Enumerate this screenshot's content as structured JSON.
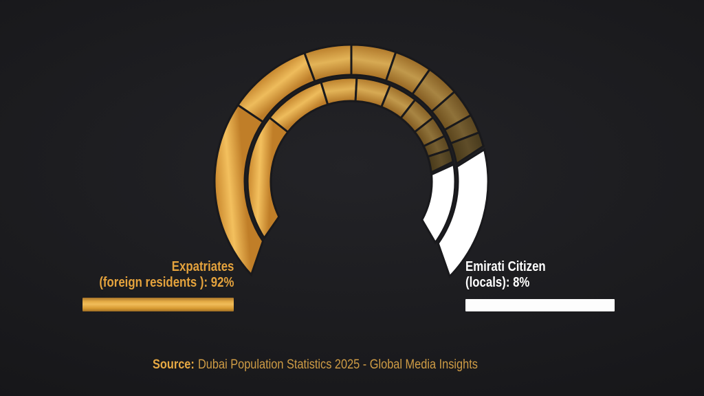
{
  "chart_data": {
    "type": "pie",
    "variant": "segmented-donut-gauge",
    "title": "",
    "series": [
      {
        "name": "Expatriates (foreign residents)",
        "value": 92,
        "unit": "%",
        "color": "#e5a33d"
      },
      {
        "name": "Emirati Citizen (locals)",
        "value": 8,
        "unit": "%",
        "color": "#ffffff"
      }
    ],
    "legend_position": "bottom",
    "gauge": {
      "center": [
        511,
        264
      ],
      "bands": {
        "outer": {
          "r_inner": 155,
          "r_outer": 199
        },
        "inner": {
          "r_inner": 117,
          "r_outer": 151
        }
      },
      "gold": {
        "outer_band": {
          "start_outer": 137,
          "start_inner": 146,
          "end_outer": 345,
          "end_inner": 350.5,
          "dividers": [
            214,
            250,
            270,
            289,
            305,
            319,
            331,
            339
          ]
        },
        "inner_band": {
          "start_outer": 147,
          "start_inner": 154,
          "end_outer": 349,
          "end_inner": 353.5,
          "dividers": [
            218,
            253,
            273,
            292,
            308,
            322,
            334,
            342
          ]
        },
        "segment_brightness": [
          1,
          0.97,
          0.9,
          0.82,
          0.68,
          0.52,
          0.36,
          0.2,
          0.06
        ],
        "bright_stops": [
          "#c07e28",
          "#f3c05e",
          "#c8862c"
        ],
        "dark_stops": [
          "#413619",
          "#564626",
          "#3f351c"
        ]
      },
      "white": {
        "outer_band": {
          "start_outer": 346.5,
          "start_inner": 352,
          "end_outer": 404,
          "end_inner": 395.5,
          "fill": "#ffffff"
        },
        "inner_band": {
          "start_outer": 350.5,
          "start_inner": 355,
          "end_outer": 396,
          "end_inner": 388.5,
          "fill": "#ffffff"
        }
      },
      "divider_color": "#19191c",
      "divider_width": 3
    }
  },
  "labels": {
    "expatriates": {
      "line1": "Expatriates",
      "line2": "(foreign residents ): 92%",
      "color": "#e5a33d"
    },
    "emirati": {
      "line1": "Emirati Citizen",
      "line2": "(locals): 8%",
      "color": "#ffffff"
    }
  },
  "source": {
    "label": "Source:",
    "text": "Dubai Population Statistics 2025 - Global Media Insights"
  }
}
